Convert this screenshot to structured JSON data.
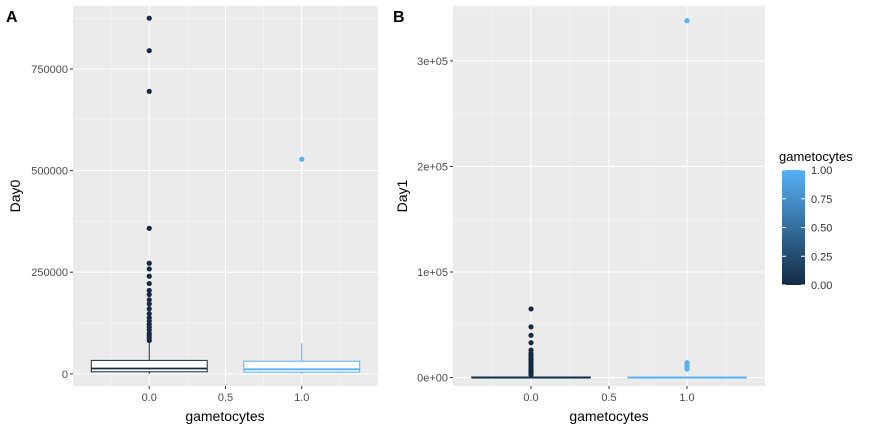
{
  "chart_data": [
    {
      "panel_tag": "A",
      "type": "boxplot",
      "xlabel": "gametocytes",
      "ylabel": "Day0",
      "xlim": [
        -0.5,
        1.5
      ],
      "ylim": [
        -30000,
        905000
      ],
      "x_ticks": [
        {
          "v": 0,
          "label": "0.0"
        },
        {
          "v": 0.5,
          "label": "0.5"
        },
        {
          "v": 1,
          "label": "1.0"
        }
      ],
      "y_ticks": [
        {
          "v": 0,
          "label": "0"
        },
        {
          "v": 250000,
          "label": "250000"
        },
        {
          "v": 500000,
          "label": "500000"
        },
        {
          "v": 750000,
          "label": "750000"
        }
      ],
      "boxes": [
        {
          "x": 0,
          "color_value": 0,
          "q1": 5000,
          "median": 13000,
          "q3": 33000,
          "whisker_low": 0,
          "whisker_high": 78000,
          "outliers": [
            875000,
            795000,
            695000,
            358000,
            272000,
            258000,
            240000,
            222000,
            205000,
            195000,
            182000,
            172000,
            160000,
            148000,
            138000,
            130000,
            122000,
            115000,
            108000,
            100000,
            94000,
            88000,
            82000
          ]
        },
        {
          "x": 1,
          "color_value": 1,
          "q1": 4000,
          "median": 11000,
          "q3": 31000,
          "whisker_low": 0,
          "whisker_high": 75000,
          "outliers": [
            528000
          ]
        }
      ]
    },
    {
      "panel_tag": "B",
      "type": "boxplot",
      "xlabel": "gametocytes",
      "ylabel": "Day1",
      "xlim": [
        -0.5,
        1.5
      ],
      "ylim": [
        -8000,
        352000
      ],
      "x_ticks": [
        {
          "v": 0,
          "label": "0.0"
        },
        {
          "v": 0.5,
          "label": "0.5"
        },
        {
          "v": 1,
          "label": "1.0"
        }
      ],
      "y_ticks": [
        {
          "v": 0,
          "label": "0e+00"
        },
        {
          "v": 100000,
          "label": "1e+05"
        },
        {
          "v": 200000,
          "label": "2e+05"
        },
        {
          "v": 300000,
          "label": "3e+05"
        }
      ],
      "boxes": [
        {
          "x": 0,
          "color_value": 0,
          "q1": 0,
          "median": 0,
          "q3": 500,
          "whisker_low": 0,
          "whisker_high": 1200,
          "outliers": [
            65000,
            48000,
            40000,
            33000,
            26000,
            23000,
            21000,
            19000,
            17000,
            15000,
            13000,
            11000,
            9000,
            7500,
            6000,
            4500,
            3500,
            2500
          ]
        },
        {
          "x": 1,
          "color_value": 1,
          "q1": 0,
          "median": 0,
          "q3": 300,
          "whisker_low": 0,
          "whisker_high": 800,
          "outliers": [
            338000,
            14000,
            12000,
            10000,
            8000
          ]
        }
      ]
    }
  ],
  "legend": {
    "title": "gametocytes",
    "ticks": [
      {
        "v": 1,
        "label": "1.00"
      },
      {
        "v": 0.75,
        "label": "0.75"
      },
      {
        "v": 0.5,
        "label": "0.50"
      },
      {
        "v": 0.25,
        "label": "0.25"
      },
      {
        "v": 0,
        "label": "0.00"
      }
    ],
    "color_low": "#132b43",
    "color_high": "#56b1f7"
  }
}
